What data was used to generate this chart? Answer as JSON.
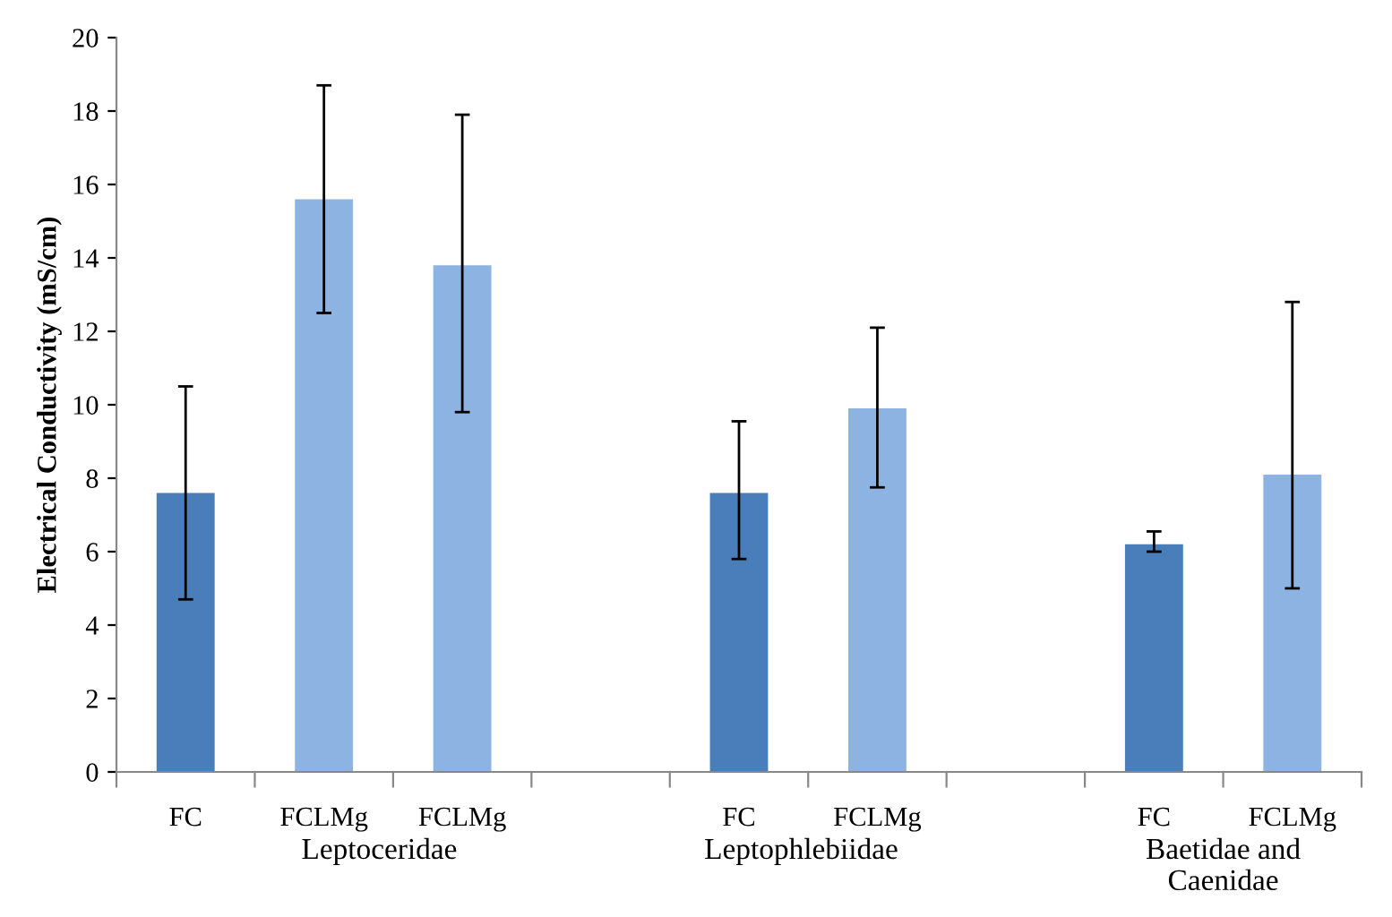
{
  "chart_data": {
    "type": "bar",
    "ylabel": "Electrical Conductivity (mS/cm)",
    "categories": [
      "FC",
      "FCLMg",
      "FCLMg",
      null,
      "FC",
      "FCLMg",
      null,
      "FC",
      "FCLMg"
    ],
    "values": [
      7.6,
      15.6,
      13.8,
      null,
      7.6,
      9.9,
      null,
      6.2,
      8.1
    ],
    "errors": [
      [
        4.7,
        10.5
      ],
      [
        12.5,
        18.7
      ],
      [
        9.8,
        17.9
      ],
      null,
      [
        5.8,
        9.55
      ],
      [
        7.75,
        12.1
      ],
      null,
      [
        6.0,
        6.55
      ],
      [
        5.0,
        12.8
      ]
    ],
    "colors": [
      "#4a7ebb",
      "#8db3e2",
      "#8db3e2",
      "#8db3e2",
      "#4a7ebb",
      "#8db3e2",
      "#8db3e2",
      "#4a7ebb",
      "#8db3e2"
    ],
    "annotations": [
      "Leptoceridae",
      "Leptophlebiidae",
      "Baetidae and\nCaenidae"
    ],
    "ylim": [
      0,
      20
    ],
    "yticks": [
      0,
      2,
      4,
      6,
      8,
      10,
      12,
      14,
      16,
      18,
      20
    ],
    "grid": false,
    "legend": false
  }
}
